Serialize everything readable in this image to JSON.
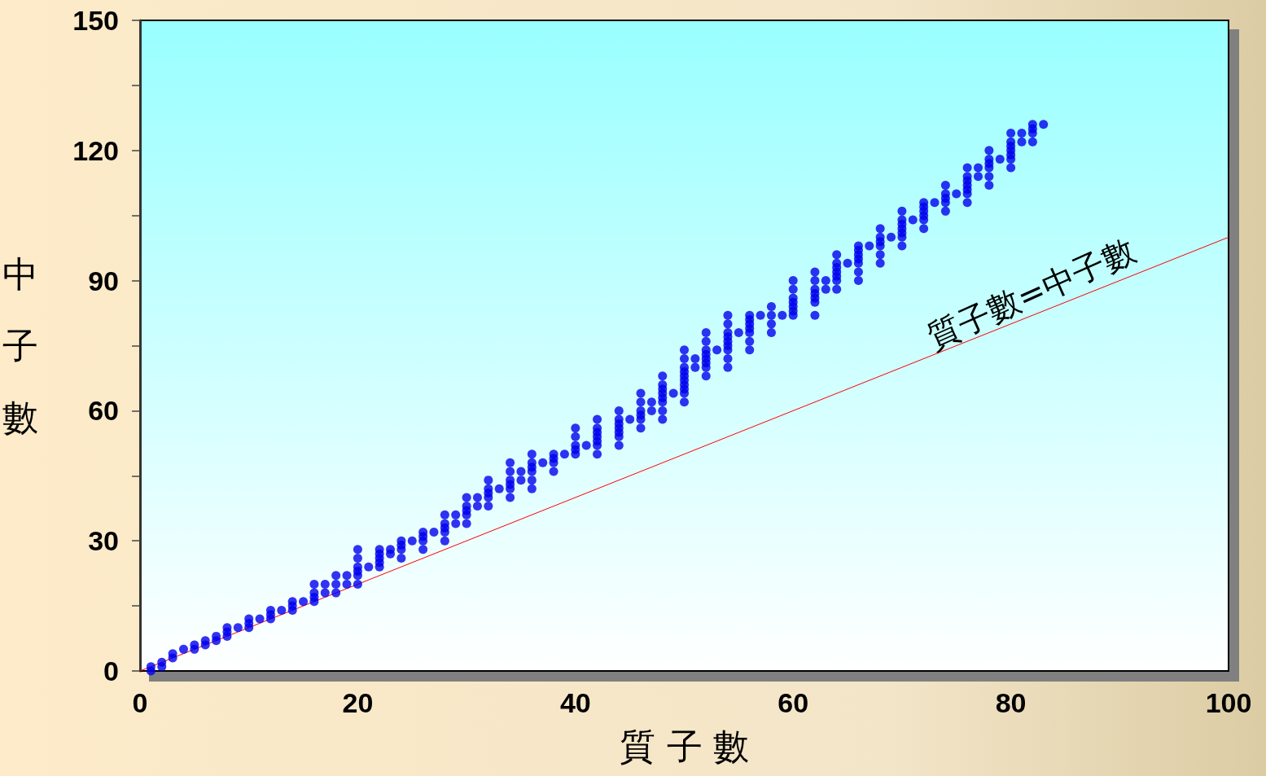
{
  "chart_data": {
    "type": "scatter",
    "xlabel": "質 子 數",
    "ylabel": "中子數",
    "marker": "circle",
    "grid": false,
    "xlim": [
      0,
      100
    ],
    "xticks": [
      0,
      20,
      40,
      60,
      80,
      100
    ],
    "ylim": [
      0,
      150
    ],
    "yticks": [
      0,
      {
        "value": 15,
        "label": null
      },
      30,
      {
        "value": 45,
        "label": null
      },
      60,
      {
        "value": 75,
        "label": null
      },
      90,
      {
        "value": 105,
        "label": null
      },
      120,
      {
        "value": 135,
        "label": null
      },
      150
    ],
    "series": [
      {
        "color": "#0000ee",
        "x": [
          1,
          1,
          2,
          2,
          3,
          3,
          4,
          5,
          5,
          6,
          6,
          7,
          7,
          8,
          8,
          8,
          9,
          10,
          10,
          10,
          11,
          12,
          12,
          12,
          13,
          14,
          14,
          14,
          15,
          16,
          16,
          16,
          16,
          17,
          17,
          18,
          18,
          18,
          19,
          19,
          20,
          20,
          20,
          20,
          20,
          20,
          21,
          22,
          22,
          22,
          22,
          22,
          23,
          23,
          24,
          24,
          24,
          24,
          25,
          26,
          26,
          26,
          26,
          27,
          28,
          28,
          28,
          28,
          28,
          29,
          29,
          30,
          30,
          30,
          30,
          30,
          31,
          31,
          32,
          32,
          32,
          32,
          32,
          33,
          34,
          34,
          34,
          34,
          34,
          34,
          35,
          35,
          36,
          36,
          36,
          36,
          36,
          36,
          37,
          38,
          38,
          38,
          38,
          39,
          40,
          40,
          40,
          40,
          40,
          41,
          42,
          42,
          42,
          42,
          42,
          42,
          42,
          44,
          44,
          44,
          44,
          44,
          44,
          44,
          45,
          46,
          46,
          46,
          46,
          46,
          46,
          47,
          47,
          48,
          48,
          48,
          48,
          48,
          48,
          48,
          48,
          49,
          50,
          50,
          50,
          50,
          50,
          50,
          50,
          50,
          50,
          50,
          51,
          51,
          52,
          52,
          52,
          52,
          52,
          52,
          52,
          52,
          53,
          54,
          54,
          54,
          54,
          54,
          54,
          54,
          54,
          54,
          55,
          56,
          56,
          56,
          56,
          56,
          56,
          56,
          57,
          58,
          58,
          58,
          58,
          59,
          60,
          60,
          60,
          60,
          60,
          60,
          60,
          62,
          62,
          62,
          62,
          62,
          62,
          62,
          63,
          63,
          64,
          64,
          64,
          64,
          64,
          64,
          64,
          65,
          66,
          66,
          66,
          66,
          66,
          66,
          66,
          67,
          68,
          68,
          68,
          68,
          68,
          68,
          69,
          70,
          70,
          70,
          70,
          70,
          70,
          70,
          71,
          72,
          72,
          72,
          72,
          72,
          72,
          73,
          74,
          74,
          74,
          74,
          74,
          75,
          76,
          76,
          76,
          76,
          76,
          76,
          76,
          77,
          77,
          78,
          78,
          78,
          78,
          78,
          78,
          79,
          80,
          80,
          80,
          80,
          80,
          80,
          80,
          81,
          81,
          82,
          82,
          82,
          82,
          83
        ],
        "values": [
          0,
          1,
          1,
          2,
          3,
          4,
          5,
          5,
          6,
          6,
          7,
          7,
          8,
          8,
          9,
          10,
          10,
          10,
          11,
          12,
          12,
          12,
          13,
          14,
          14,
          14,
          15,
          16,
          16,
          16,
          17,
          18,
          20,
          18,
          20,
          18,
          20,
          22,
          20,
          22,
          20,
          22,
          23,
          24,
          26,
          28,
          24,
          24,
          25,
          26,
          27,
          28,
          27,
          28,
          26,
          28,
          29,
          30,
          30,
          28,
          30,
          31,
          32,
          32,
          30,
          32,
          33,
          34,
          36,
          34,
          36,
          34,
          36,
          37,
          38,
          40,
          38,
          40,
          38,
          40,
          41,
          42,
          44,
          42,
          40,
          42,
          43,
          44,
          46,
          48,
          44,
          46,
          42,
          44,
          46,
          47,
          48,
          50,
          48,
          46,
          48,
          49,
          50,
          50,
          50,
          51,
          52,
          54,
          56,
          52,
          50,
          52,
          53,
          54,
          55,
          56,
          58,
          52,
          54,
          55,
          56,
          57,
          58,
          60,
          58,
          56,
          58,
          59,
          60,
          62,
          64,
          60,
          62,
          58,
          60,
          62,
          63,
          64,
          65,
          66,
          68,
          64,
          62,
          64,
          65,
          66,
          67,
          68,
          69,
          70,
          72,
          74,
          70,
          72,
          68,
          70,
          71,
          72,
          73,
          74,
          76,
          78,
          74,
          70,
          72,
          74,
          75,
          76,
          77,
          78,
          80,
          82,
          78,
          74,
          76,
          78,
          79,
          80,
          81,
          82,
          82,
          78,
          80,
          82,
          84,
          82,
          82,
          83,
          84,
          85,
          86,
          88,
          90,
          82,
          85,
          86,
          87,
          88,
          90,
          92,
          88,
          90,
          88,
          90,
          91,
          92,
          93,
          94,
          96,
          94,
          90,
          92,
          94,
          95,
          96,
          97,
          98,
          98,
          94,
          96,
          98,
          99,
          100,
          102,
          100,
          98,
          100,
          101,
          102,
          103,
          104,
          106,
          104,
          102,
          104,
          105,
          106,
          107,
          108,
          108,
          106,
          108,
          109,
          110,
          112,
          110,
          108,
          110,
          111,
          112,
          113,
          114,
          116,
          114,
          116,
          112,
          114,
          116,
          117,
          118,
          120,
          118,
          116,
          118,
          119,
          120,
          121,
          122,
          124,
          122,
          124,
          122,
          124,
          125,
          126,
          126
        ]
      },
      {
        "type": "line",
        "marker": "none",
        "color": "#ff0000",
        "x": [
          0,
          100
        ],
        "values": [
          0,
          100
        ]
      }
    ],
    "annotations": [
      "質子數=中子數"
    ]
  }
}
